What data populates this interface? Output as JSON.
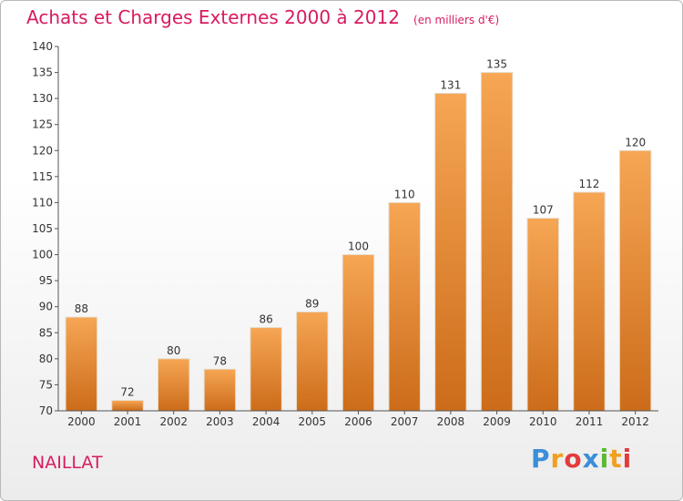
{
  "header": {
    "title": "Achats et Charges Externes 2000 à 2012",
    "subtitle": "(en milliers d'€)"
  },
  "footer": {
    "commune": "NAILLAT",
    "brand_letters": [
      "P",
      "r",
      "o",
      "x",
      "i",
      "t",
      "i"
    ],
    "brand_colors": [
      "#3a8fd9",
      "#f0a020",
      "#e23b3b",
      "#3a8fd9",
      "#5cb832",
      "#f0a020",
      "#e23b3b"
    ]
  },
  "chart_data": {
    "type": "bar",
    "title": "Achats et Charges Externes 2000 à 2012",
    "subtitle": "(en milliers d'€)",
    "categories": [
      "2000",
      "2001",
      "2002",
      "2003",
      "2004",
      "2005",
      "2006",
      "2007",
      "2008",
      "2009",
      "2010",
      "2011",
      "2012"
    ],
    "values": [
      88,
      72,
      80,
      78,
      86,
      89,
      100,
      110,
      131,
      135,
      107,
      112,
      120
    ],
    "ylim": [
      70,
      140
    ],
    "yticks": [
      70,
      75,
      80,
      85,
      90,
      95,
      100,
      105,
      110,
      115,
      120,
      125,
      130,
      135,
      140
    ],
    "grid": false,
    "bar_color_top": "#f6a654",
    "bar_color_bottom": "#cc6c1a"
  }
}
